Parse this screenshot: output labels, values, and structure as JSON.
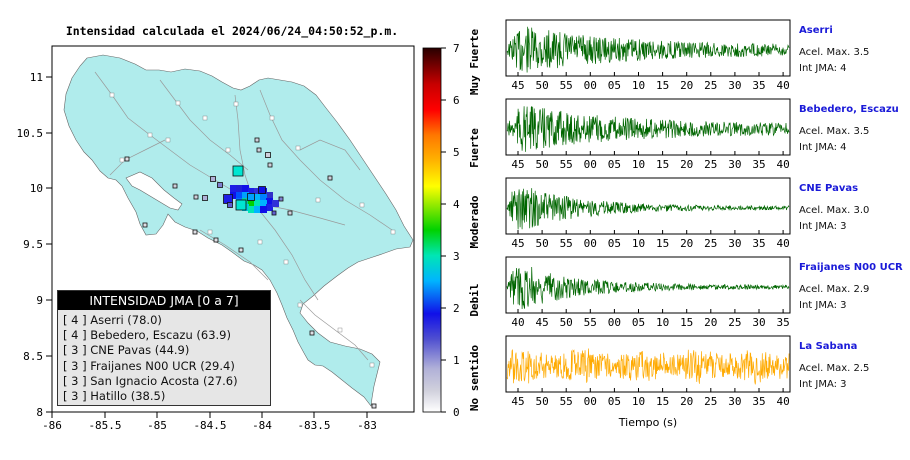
{
  "header": {
    "title": "Intensidad calculada el 2024/06/24_04:50:52_p.m."
  },
  "map": {
    "x_ticks": [
      "-86",
      "-85.5",
      "-85",
      "-84.5",
      "-84",
      "-83.5",
      "-83"
    ],
    "y_ticks": [
      "11",
      "10.5",
      "10",
      "9.5",
      "9",
      "8.5",
      "8"
    ],
    "land_color": "#b0ecec",
    "water_color": "#ffffff"
  },
  "colorbar": {
    "ticks": [
      "0",
      "1",
      "2",
      "3",
      "4",
      "5",
      "6",
      "7"
    ],
    "labels": [
      "No sentido",
      "Debil",
      "Moderado",
      "Fuerte",
      "Muy Fuerte"
    ]
  },
  "legend": {
    "title": "INTENSIDAD JMA [0 a 7]",
    "rows": [
      "[ 4 ] Aserri (78.0)",
      "[ 4 ] Bebedero, Escazu (63.9)",
      "[ 3 ] CNE Pavas (44.9)",
      "[ 3 ] Fraijanes N00 UCR (29.4)",
      "[ 3 ] San Ignacio Acosta (27.6)",
      "[ 3 ] Hatillo (38.5)"
    ]
  },
  "chart_data": {
    "type": "line",
    "xlabel": "Tiempo (s)",
    "series": [
      {
        "name": "Aserri",
        "accel_text": "Acel. Max. 3.5",
        "int_text": "Int JMA: 4",
        "color": "#006600",
        "ticks": [
          "45",
          "50",
          "55",
          "00",
          "05",
          "10",
          "15",
          "20",
          "25",
          "30",
          "35",
          "40"
        ]
      },
      {
        "name": "Bebedero, Escazu",
        "accel_text": "Acel. Max. 3.5",
        "int_text": "Int JMA: 4",
        "color": "#006600",
        "ticks": [
          "45",
          "50",
          "55",
          "00",
          "05",
          "10",
          "15",
          "20",
          "25",
          "30",
          "35",
          "40"
        ]
      },
      {
        "name": "CNE Pavas",
        "accel_text": "Acel. Max. 3.0",
        "int_text": "Int JMA: 3",
        "color": "#006600",
        "ticks": [
          "45",
          "50",
          "55",
          "00",
          "05",
          "10",
          "15",
          "20",
          "25",
          "30",
          "35",
          "40"
        ]
      },
      {
        "name": "Fraijanes N00 UCR",
        "accel_text": "Acel. Max. 2.9",
        "int_text": "Int JMA: 3",
        "color": "#006600",
        "ticks": [
          "40",
          "45",
          "50",
          "55",
          "00",
          "05",
          "10",
          "15",
          "20",
          "25",
          "30",
          "35"
        ]
      },
      {
        "name": "La Sabana",
        "accel_text": "Acel. Max. 2.5",
        "int_text": "Int JMA: 3",
        "color": "#ffaa00",
        "ticks": [
          "45",
          "50",
          "55",
          "00",
          "05",
          "10",
          "15",
          "20",
          "25",
          "30",
          "35",
          "40"
        ]
      }
    ]
  }
}
